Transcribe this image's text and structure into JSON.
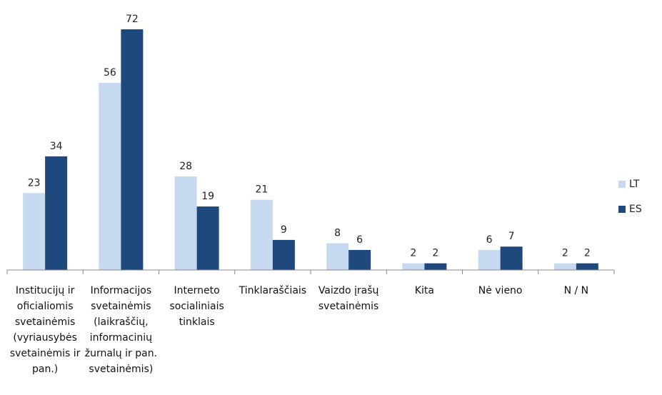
{
  "chart_data": {
    "type": "bar",
    "categories": [
      "Institucijų ir oficialiomis svetainėmis (vyriausybės svetainėmis ir pan.)",
      "Informacijos svetainėmis (laikraščių, informacinių žurnalų ir pan. svetainėmis)",
      "Interneto socialiniais tinklais",
      "Tinklaraščiais",
      "Vaizdo įrašų svetainėmis",
      "Kita",
      "Nė vieno",
      "N / N"
    ],
    "series": [
      {
        "name": "LT",
        "color": "#c6d9f1",
        "values": [
          23,
          56,
          28,
          21,
          8,
          2,
          6,
          2
        ]
      },
      {
        "name": "ES",
        "color": "#1f497d",
        "values": [
          34,
          72,
          19,
          9,
          6,
          2,
          7,
          2
        ]
      }
    ],
    "legend": "right"
  }
}
